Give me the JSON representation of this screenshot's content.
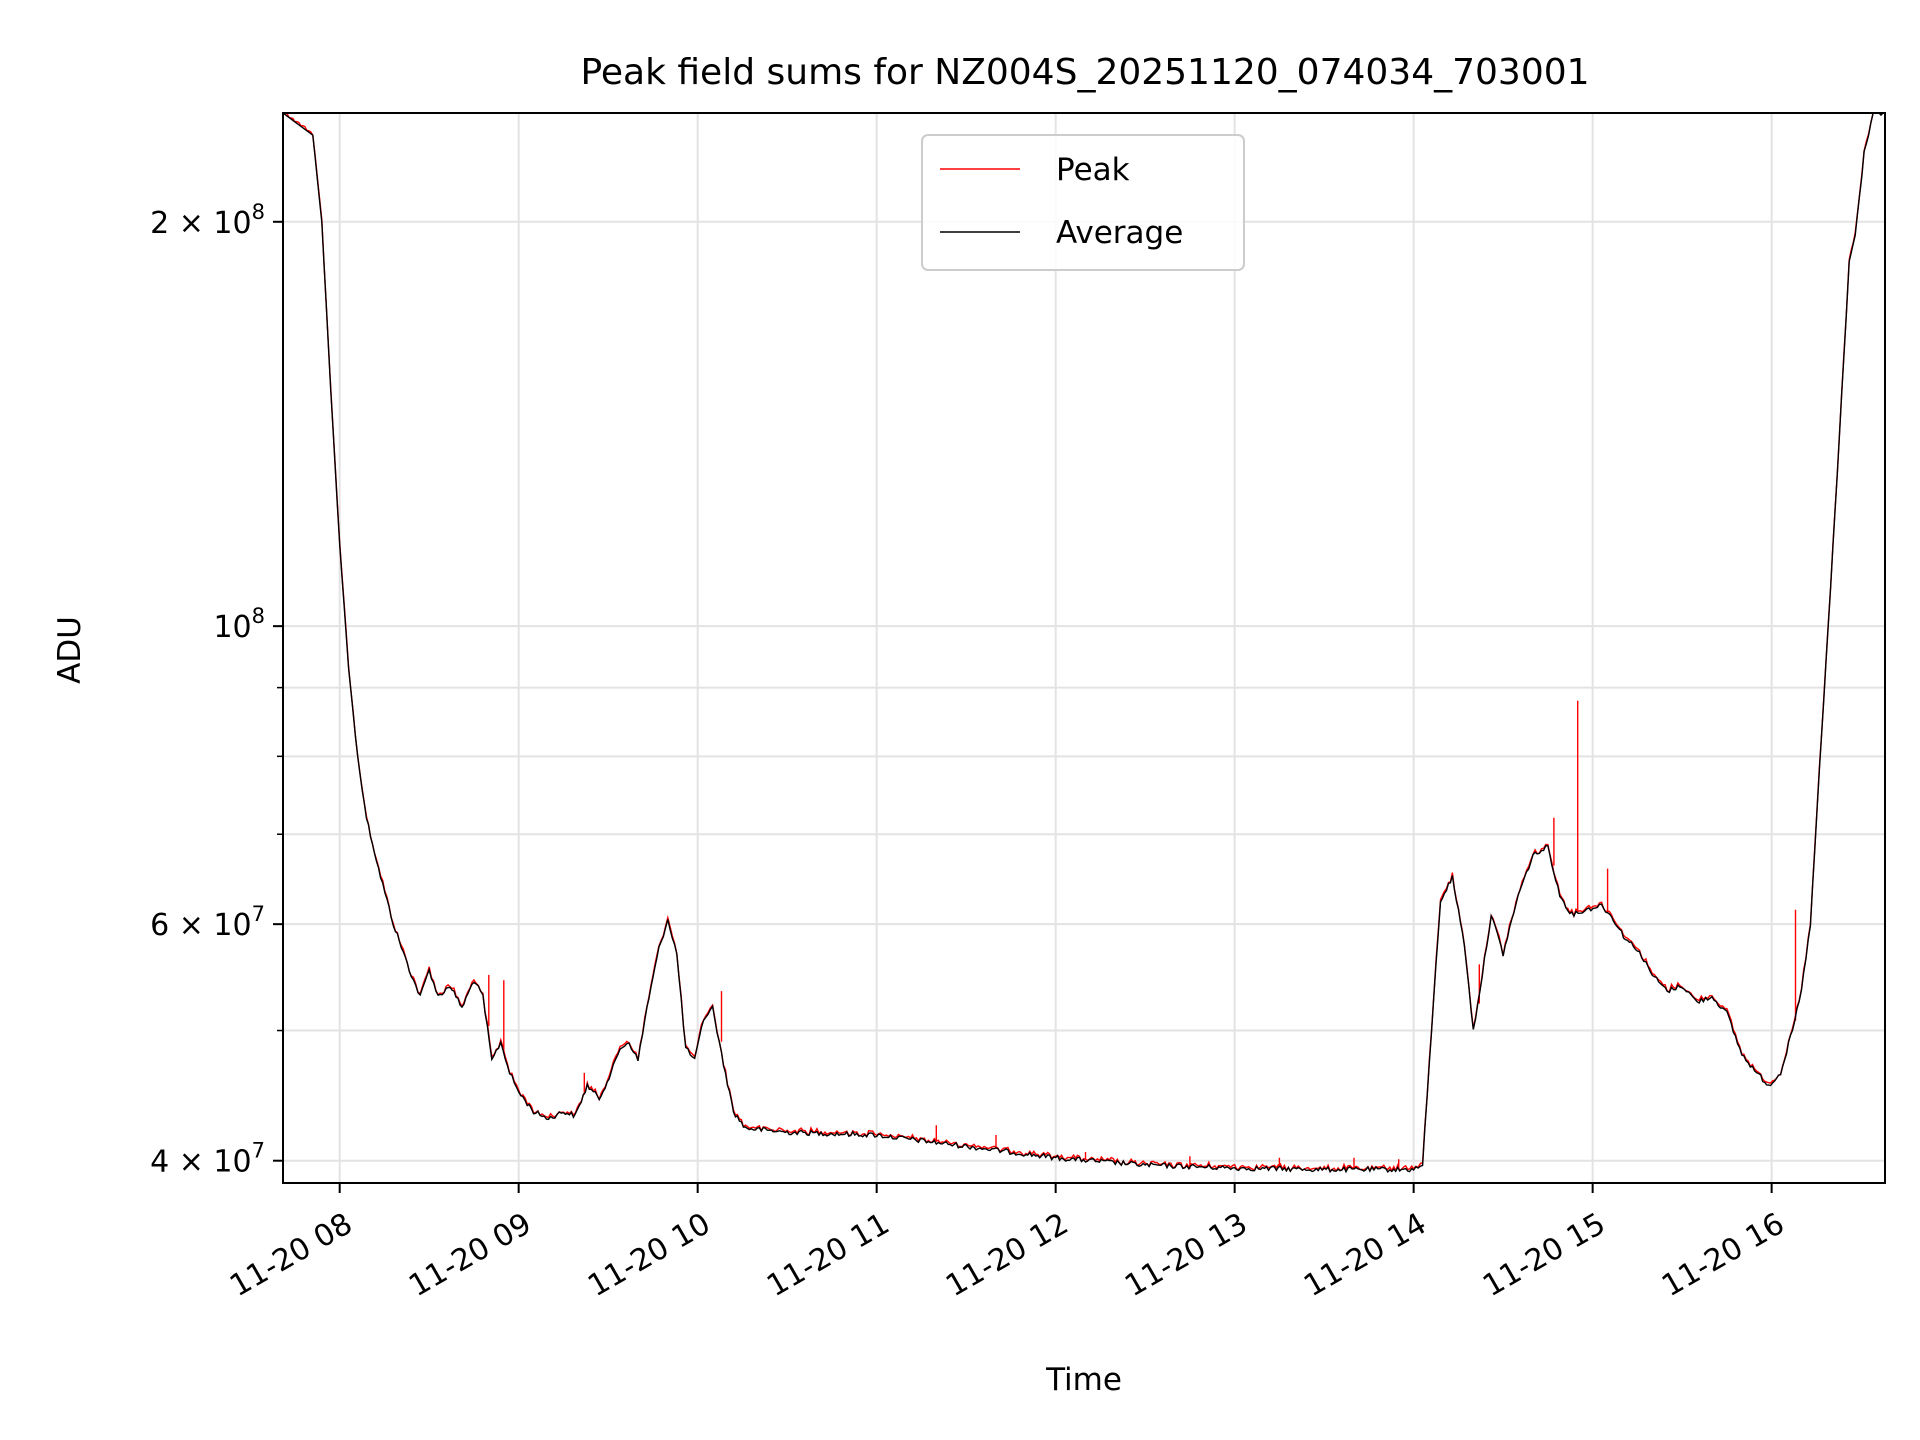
{
  "chart_data": {
    "type": "line",
    "title": "Peak field sums for NZ004S_20251120_074034_703001",
    "xlabel": "Time",
    "ylabel": "ADU",
    "yscale": "log",
    "grid": true,
    "legend_position": "top-center",
    "xlim": [
      "2025-11-20 07:41",
      "2025-11-20 16:38"
    ],
    "ylim": [
      38500000,
      241000000
    ],
    "x_ticks": [
      {
        "value": "2025-11-20 08:00",
        "label": "11-20 08"
      },
      {
        "value": "2025-11-20 09:00",
        "label": "11-20 09"
      },
      {
        "value": "2025-11-20 10:00",
        "label": "11-20 10"
      },
      {
        "value": "2025-11-20 11:00",
        "label": "11-20 11"
      },
      {
        "value": "2025-11-20 12:00",
        "label": "11-20 12"
      },
      {
        "value": "2025-11-20 13:00",
        "label": "11-20 13"
      },
      {
        "value": "2025-11-20 14:00",
        "label": "11-20 14"
      },
      {
        "value": "2025-11-20 15:00",
        "label": "11-20 15"
      },
      {
        "value": "2025-11-20 16:00",
        "label": "11-20 16"
      }
    ],
    "y_ticks": [
      {
        "value": 40000000,
        "base": "4 × 10",
        "exp": "7"
      },
      {
        "value": 60000000,
        "base": "6 × 10",
        "exp": "7"
      },
      {
        "value": 100000000,
        "base": "10",
        "exp": "8"
      },
      {
        "value": 200000000,
        "base": "2 × 10",
        "exp": "8"
      }
    ],
    "y_minor_ticks": [
      50000000,
      70000000,
      80000000,
      90000000
    ],
    "series": [
      {
        "name": "Peak",
        "color": "#ff0000"
      },
      {
        "name": "Average",
        "color": "#000000"
      }
    ],
    "average_points": [
      [
        "2025-11-20 07:41",
        241000000
      ],
      [
        "2025-11-20 07:51",
        232000000
      ],
      [
        "2025-11-20 07:54",
        200000000
      ],
      [
        "2025-11-20 07:57",
        150000000
      ],
      [
        "2025-11-20 08:00",
        115000000
      ],
      [
        "2025-11-20 08:03",
        93000000
      ],
      [
        "2025-11-20 08:06",
        80000000
      ],
      [
        "2025-11-20 08:09",
        72000000
      ],
      [
        "2025-11-20 08:13",
        66000000
      ],
      [
        "2025-11-20 08:18",
        60000000
      ],
      [
        "2025-11-20 08:24",
        55000000
      ],
      [
        "2025-11-20 08:27",
        53000000
      ],
      [
        "2025-11-20 08:30",
        55500000
      ],
      [
        "2025-11-20 08:33",
        53000000
      ],
      [
        "2025-11-20 08:37",
        54000000
      ],
      [
        "2025-11-20 08:41",
        52000000
      ],
      [
        "2025-11-20 08:45",
        54500000
      ],
      [
        "2025-11-20 08:48",
        53000000
      ],
      [
        "2025-11-20 08:51",
        47500000
      ],
      [
        "2025-11-20 08:54",
        49000000
      ],
      [
        "2025-11-20 08:57",
        46500000
      ],
      [
        "2025-11-20 09:00",
        45000000
      ],
      [
        "2025-11-20 09:05",
        43500000
      ],
      [
        "2025-11-20 09:10",
        43000000
      ],
      [
        "2025-11-20 09:15",
        43500000
      ],
      [
        "2025-11-20 09:19",
        43200000
      ],
      [
        "2025-11-20 09:23",
        45500000
      ],
      [
        "2025-11-20 09:27",
        44500000
      ],
      [
        "2025-11-20 09:31",
        46500000
      ],
      [
        "2025-11-20 09:34",
        48500000
      ],
      [
        "2025-11-20 09:37",
        49000000
      ],
      [
        "2025-11-20 09:40",
        47500000
      ],
      [
        "2025-11-20 09:43",
        52000000
      ],
      [
        "2025-11-20 09:47",
        57500000
      ],
      [
        "2025-11-20 09:50",
        60500000
      ],
      [
        "2025-11-20 09:53",
        57000000
      ],
      [
        "2025-11-20 09:56",
        48500000
      ],
      [
        "2025-11-20 09:59",
        47500000
      ],
      [
        "2025-11-20 10:02",
        51000000
      ],
      [
        "2025-11-20 10:05",
        52000000
      ],
      [
        "2025-11-20 10:08",
        48000000
      ],
      [
        "2025-11-20 10:12",
        43500000
      ],
      [
        "2025-11-20 10:16",
        42300000
      ],
      [
        "2025-11-20 10:30",
        42000000
      ],
      [
        "2025-11-20 11:00",
        41800000
      ],
      [
        "2025-11-20 11:30",
        41000000
      ],
      [
        "2025-11-20 12:00",
        40200000
      ],
      [
        "2025-11-20 12:30",
        39700000
      ],
      [
        "2025-11-20 13:00",
        39500000
      ],
      [
        "2025-11-20 13:30",
        39400000
      ],
      [
        "2025-11-20 14:00",
        39400000
      ],
      [
        "2025-11-20 14:03",
        39700000
      ],
      [
        "2025-11-20 14:06",
        50000000
      ],
      [
        "2025-11-20 14:09",
        62500000
      ],
      [
        "2025-11-20 14:13",
        65000000
      ],
      [
        "2025-11-20 14:17",
        58000000
      ],
      [
        "2025-11-20 14:20",
        50000000
      ],
      [
        "2025-11-20 14:23",
        55000000
      ],
      [
        "2025-11-20 14:26",
        61000000
      ],
      [
        "2025-11-20 14:30",
        57000000
      ],
      [
        "2025-11-20 14:35",
        63000000
      ],
      [
        "2025-11-20 14:40",
        67500000
      ],
      [
        "2025-11-20 14:45",
        68500000
      ],
      [
        "2025-11-20 14:49",
        63000000
      ],
      [
        "2025-11-20 14:53",
        61000000
      ],
      [
        "2025-11-20 14:58",
        61500000
      ],
      [
        "2025-11-20 15:03",
        62000000
      ],
      [
        "2025-11-20 15:07",
        60500000
      ],
      [
        "2025-11-20 15:11",
        58500000
      ],
      [
        "2025-11-20 15:15",
        57500000
      ],
      [
        "2025-11-20 15:20",
        55000000
      ],
      [
        "2025-11-20 15:25",
        53500000
      ],
      [
        "2025-11-20 15:30",
        54000000
      ],
      [
        "2025-11-20 15:35",
        52500000
      ],
      [
        "2025-11-20 15:40",
        53000000
      ],
      [
        "2025-11-20 15:45",
        51500000
      ],
      [
        "2025-11-20 15:50",
        48000000
      ],
      [
        "2025-11-20 15:55",
        46500000
      ],
      [
        "2025-11-20 15:59",
        45500000
      ],
      [
        "2025-11-20 16:03",
        46500000
      ],
      [
        "2025-11-20 16:07",
        50000000
      ],
      [
        "2025-11-20 16:10",
        53500000
      ],
      [
        "2025-11-20 16:13",
        60000000
      ],
      [
        "2025-11-20 16:16",
        78000000
      ],
      [
        "2025-11-20 16:19",
        100000000
      ],
      [
        "2025-11-20 16:22",
        130000000
      ],
      [
        "2025-11-20 16:25",
        170000000
      ],
      [
        "2025-11-20 16:26",
        187000000
      ],
      [
        "2025-11-20 16:28",
        195000000
      ],
      [
        "2025-11-20 16:31",
        225000000
      ],
      [
        "2025-11-20 16:34",
        241000000
      ],
      [
        "2025-11-20 16:38",
        241000000
      ]
    ],
    "peak_spikes": [
      [
        "2025-11-20 08:50",
        55000000
      ],
      [
        "2025-11-20 08:55",
        54500000
      ],
      [
        "2025-11-20 09:22",
        46500000
      ],
      [
        "2025-11-20 10:08",
        53500000
      ],
      [
        "2025-11-20 11:20",
        42500000
      ],
      [
        "2025-11-20 11:40",
        41800000
      ],
      [
        "2025-11-20 12:10",
        40600000
      ],
      [
        "2025-11-20 12:45",
        40300000
      ],
      [
        "2025-11-20 13:15",
        40200000
      ],
      [
        "2025-11-20 13:40",
        40200000
      ],
      [
        "2025-11-20 13:55",
        40100000
      ],
      [
        "2025-11-20 14:22",
        56000000
      ],
      [
        "2025-11-20 14:47",
        72000000
      ],
      [
        "2025-11-20 14:55",
        88000000
      ],
      [
        "2025-11-20 15:05",
        66000000
      ],
      [
        "2025-11-20 16:08",
        61500000
      ]
    ]
  }
}
